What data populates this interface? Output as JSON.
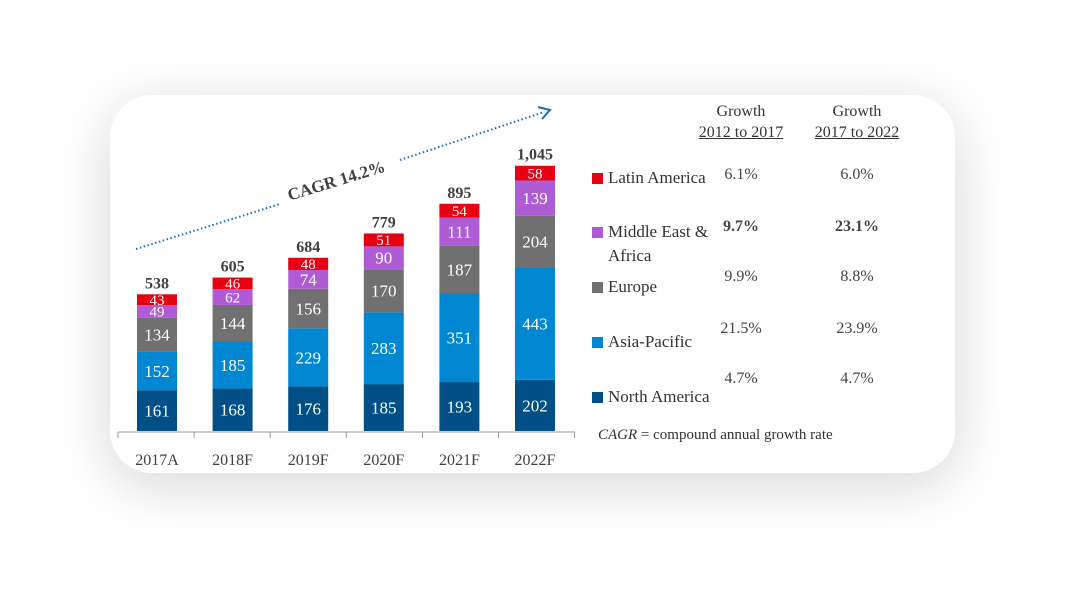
{
  "chart_data": {
    "type": "bar",
    "stacked": true,
    "title": "",
    "xlabel": "",
    "ylabel": "",
    "categories": [
      "2017A",
      "2018F",
      "2019F",
      "2020F",
      "2021F",
      "2022F"
    ],
    "series": [
      {
        "name": "North America",
        "color": "#004f87",
        "values": [
          161,
          168,
          176,
          185,
          193,
          202
        ]
      },
      {
        "name": "Asia-Pacific",
        "color": "#0087d2",
        "values": [
          152,
          185,
          229,
          283,
          351,
          443
        ]
      },
      {
        "name": "Europe",
        "color": "#707070",
        "values": [
          134,
          144,
          156,
          170,
          187,
          204
        ]
      },
      {
        "name": "Middle East & Africa",
        "color": "#b05bd6",
        "values": [
          49,
          62,
          74,
          90,
          111,
          139
        ]
      },
      {
        "name": "Latin America",
        "color": "#e60012",
        "values": [
          43,
          46,
          48,
          51,
          54,
          58
        ]
      }
    ],
    "totals": [
      "538",
      "605",
      "684",
      "779",
      "895",
      "1,045"
    ],
    "ylim": [
      0,
      1045
    ],
    "grid": false,
    "legend_position": "right",
    "annotation": "CAGR 14.2%"
  },
  "table": {
    "headers": [
      {
        "line1": "Growth",
        "line2": "2012 to 2017"
      },
      {
        "line1": "Growth",
        "line2": "2017 to 2022"
      }
    ],
    "rows": [
      {
        "region": "Latin America",
        "color": "#e60012",
        "g1": "6.1%",
        "g2": "6.0%",
        "bold": false
      },
      {
        "region": "Middle East & Africa",
        "region_line1": "Middle East &",
        "region_line2": "Africa",
        "color": "#b05bd6",
        "g1": "9.7%",
        "g2": "23.1%",
        "bold": true
      },
      {
        "region": "Europe",
        "color": "#707070",
        "g1": "9.9%",
        "g2": "8.8%",
        "bold": false
      },
      {
        "region": "Asia-Pacific",
        "color": "#0087d2",
        "g1": "21.5%",
        "g2": "23.9%",
        "bold": false
      },
      {
        "region": "North America",
        "color": "#004f87",
        "g1": "4.7%",
        "g2": "4.7%",
        "bold": false
      }
    ]
  },
  "footnote": {
    "abbr": "CAGR",
    "rest": " = compound  annual growth rate"
  }
}
